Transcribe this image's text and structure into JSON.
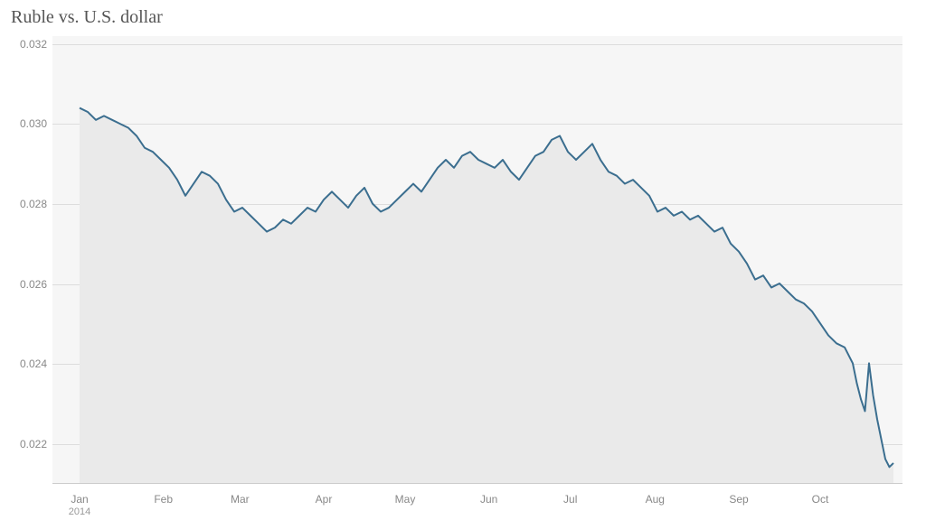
{
  "chart": {
    "type": "area",
    "title": "Ruble vs. U.S. dollar",
    "title_fontsize": 20,
    "title_color": "#555555",
    "background_color": "#ffffff",
    "plot_background_color": "#f6f6f6",
    "grid_color": "#dddddd",
    "axis_label_color": "#888888",
    "axis_label_fontsize": 12,
    "line_color": "#3b6e8f",
    "line_width": 2,
    "fill_color": "#eaeaea",
    "fill_opacity": 1.0,
    "y": {
      "min": 0.021,
      "max": 0.0322,
      "ticks": [
        0.022,
        0.024,
        0.026,
        0.028,
        0.03,
        0.032
      ],
      "tick_labels": [
        "0.022",
        "0.024",
        "0.026",
        "0.028",
        "0.030",
        "0.032"
      ]
    },
    "x": {
      "ticks": [
        {
          "pos": 0.0,
          "label": "Jan",
          "sub": "2014"
        },
        {
          "pos": 0.103,
          "label": "Feb",
          "sub": ""
        },
        {
          "pos": 0.197,
          "label": "Mar",
          "sub": ""
        },
        {
          "pos": 0.3,
          "label": "Apr",
          "sub": ""
        },
        {
          "pos": 0.4,
          "label": "May",
          "sub": ""
        },
        {
          "pos": 0.503,
          "label": "Jun",
          "sub": ""
        },
        {
          "pos": 0.603,
          "label": "Jul",
          "sub": ""
        },
        {
          "pos": 0.707,
          "label": "Aug",
          "sub": ""
        },
        {
          "pos": 0.81,
          "label": "Sep",
          "sub": ""
        },
        {
          "pos": 0.91,
          "label": "Oct",
          "sub": ""
        }
      ]
    },
    "series": [
      {
        "x": 0.0,
        "y": 0.0304
      },
      {
        "x": 0.01,
        "y": 0.0303
      },
      {
        "x": 0.02,
        "y": 0.0301
      },
      {
        "x": 0.03,
        "y": 0.0302
      },
      {
        "x": 0.04,
        "y": 0.0301
      },
      {
        "x": 0.05,
        "y": 0.03
      },
      {
        "x": 0.06,
        "y": 0.0299
      },
      {
        "x": 0.07,
        "y": 0.0297
      },
      {
        "x": 0.08,
        "y": 0.0294
      },
      {
        "x": 0.09,
        "y": 0.0293
      },
      {
        "x": 0.1,
        "y": 0.0291
      },
      {
        "x": 0.11,
        "y": 0.0289
      },
      {
        "x": 0.12,
        "y": 0.0286
      },
      {
        "x": 0.13,
        "y": 0.0282
      },
      {
        "x": 0.14,
        "y": 0.0285
      },
      {
        "x": 0.15,
        "y": 0.0288
      },
      {
        "x": 0.16,
        "y": 0.0287
      },
      {
        "x": 0.17,
        "y": 0.0285
      },
      {
        "x": 0.18,
        "y": 0.0281
      },
      {
        "x": 0.19,
        "y": 0.0278
      },
      {
        "x": 0.2,
        "y": 0.0279
      },
      {
        "x": 0.21,
        "y": 0.0277
      },
      {
        "x": 0.22,
        "y": 0.0275
      },
      {
        "x": 0.23,
        "y": 0.0273
      },
      {
        "x": 0.24,
        "y": 0.0274
      },
      {
        "x": 0.25,
        "y": 0.0276
      },
      {
        "x": 0.26,
        "y": 0.0275
      },
      {
        "x": 0.27,
        "y": 0.0277
      },
      {
        "x": 0.28,
        "y": 0.0279
      },
      {
        "x": 0.29,
        "y": 0.0278
      },
      {
        "x": 0.3,
        "y": 0.0281
      },
      {
        "x": 0.31,
        "y": 0.0283
      },
      {
        "x": 0.32,
        "y": 0.0281
      },
      {
        "x": 0.33,
        "y": 0.0279
      },
      {
        "x": 0.34,
        "y": 0.0282
      },
      {
        "x": 0.35,
        "y": 0.0284
      },
      {
        "x": 0.36,
        "y": 0.028
      },
      {
        "x": 0.37,
        "y": 0.0278
      },
      {
        "x": 0.38,
        "y": 0.0279
      },
      {
        "x": 0.39,
        "y": 0.0281
      },
      {
        "x": 0.4,
        "y": 0.0283
      },
      {
        "x": 0.41,
        "y": 0.0285
      },
      {
        "x": 0.42,
        "y": 0.0283
      },
      {
        "x": 0.43,
        "y": 0.0286
      },
      {
        "x": 0.44,
        "y": 0.0289
      },
      {
        "x": 0.45,
        "y": 0.0291
      },
      {
        "x": 0.46,
        "y": 0.0289
      },
      {
        "x": 0.47,
        "y": 0.0292
      },
      {
        "x": 0.48,
        "y": 0.0293
      },
      {
        "x": 0.49,
        "y": 0.0291
      },
      {
        "x": 0.5,
        "y": 0.029
      },
      {
        "x": 0.51,
        "y": 0.0289
      },
      {
        "x": 0.52,
        "y": 0.0291
      },
      {
        "x": 0.53,
        "y": 0.0288
      },
      {
        "x": 0.54,
        "y": 0.0286
      },
      {
        "x": 0.55,
        "y": 0.0289
      },
      {
        "x": 0.56,
        "y": 0.0292
      },
      {
        "x": 0.57,
        "y": 0.0293
      },
      {
        "x": 0.58,
        "y": 0.0296
      },
      {
        "x": 0.59,
        "y": 0.0297
      },
      {
        "x": 0.6,
        "y": 0.0293
      },
      {
        "x": 0.61,
        "y": 0.0291
      },
      {
        "x": 0.62,
        "y": 0.0293
      },
      {
        "x": 0.63,
        "y": 0.0295
      },
      {
        "x": 0.64,
        "y": 0.0291
      },
      {
        "x": 0.65,
        "y": 0.0288
      },
      {
        "x": 0.66,
        "y": 0.0287
      },
      {
        "x": 0.67,
        "y": 0.0285
      },
      {
        "x": 0.68,
        "y": 0.0286
      },
      {
        "x": 0.69,
        "y": 0.0284
      },
      {
        "x": 0.7,
        "y": 0.0282
      },
      {
        "x": 0.71,
        "y": 0.0278
      },
      {
        "x": 0.72,
        "y": 0.0279
      },
      {
        "x": 0.73,
        "y": 0.0277
      },
      {
        "x": 0.74,
        "y": 0.0278
      },
      {
        "x": 0.75,
        "y": 0.0276
      },
      {
        "x": 0.76,
        "y": 0.0277
      },
      {
        "x": 0.77,
        "y": 0.0275
      },
      {
        "x": 0.78,
        "y": 0.0273
      },
      {
        "x": 0.79,
        "y": 0.0274
      },
      {
        "x": 0.8,
        "y": 0.027
      },
      {
        "x": 0.81,
        "y": 0.0268
      },
      {
        "x": 0.82,
        "y": 0.0265
      },
      {
        "x": 0.83,
        "y": 0.0261
      },
      {
        "x": 0.84,
        "y": 0.0262
      },
      {
        "x": 0.85,
        "y": 0.0259
      },
      {
        "x": 0.86,
        "y": 0.026
      },
      {
        "x": 0.87,
        "y": 0.0258
      },
      {
        "x": 0.88,
        "y": 0.0256
      },
      {
        "x": 0.89,
        "y": 0.0255
      },
      {
        "x": 0.9,
        "y": 0.0253
      },
      {
        "x": 0.91,
        "y": 0.025
      },
      {
        "x": 0.92,
        "y": 0.0247
      },
      {
        "x": 0.93,
        "y": 0.0245
      },
      {
        "x": 0.94,
        "y": 0.0244
      },
      {
        "x": 0.95,
        "y": 0.024
      },
      {
        "x": 0.955,
        "y": 0.0235
      },
      {
        "x": 0.96,
        "y": 0.0231
      },
      {
        "x": 0.965,
        "y": 0.0228
      },
      {
        "x": 0.97,
        "y": 0.024
      },
      {
        "x": 0.975,
        "y": 0.0232
      },
      {
        "x": 0.98,
        "y": 0.0226
      },
      {
        "x": 0.985,
        "y": 0.0221
      },
      {
        "x": 0.99,
        "y": 0.0216
      },
      {
        "x": 0.995,
        "y": 0.0214
      },
      {
        "x": 1.0,
        "y": 0.0215
      }
    ]
  }
}
